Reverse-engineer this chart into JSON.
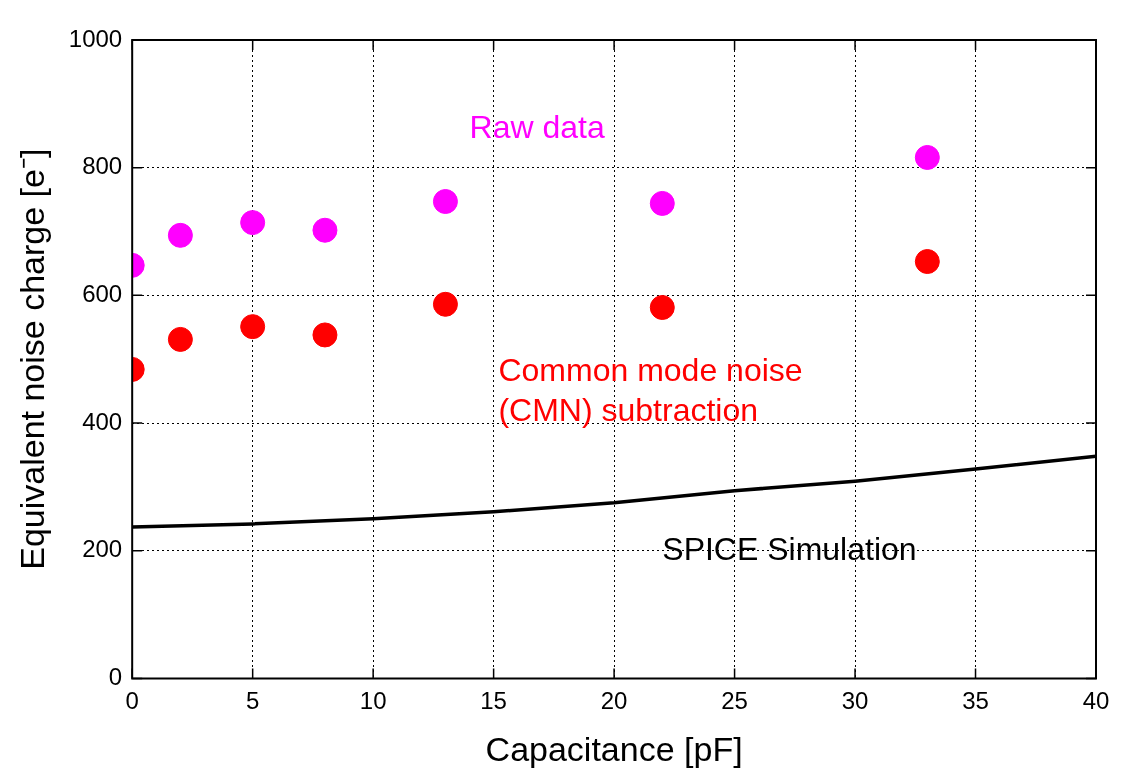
{
  "chart_data": {
    "type": "scatter",
    "xlabel": "Capacitance [pF]",
    "ylabel": "Equivalent noise charge [e⁻]",
    "xlim": [
      0,
      40
    ],
    "xticks": [
      0,
      5,
      10,
      15,
      20,
      25,
      30,
      35,
      40
    ],
    "ylim": [
      0,
      1000
    ],
    "yticks": [
      0,
      200,
      400,
      600,
      800,
      1000
    ],
    "grid": true,
    "legend": false,
    "series": [
      {
        "name": "Raw data",
        "marker": "circle",
        "color": "#ff00ff",
        "x": [
          0,
          2,
          5,
          8,
          13,
          22,
          33
        ],
        "values": [
          647,
          694,
          714,
          702,
          747,
          744,
          816
        ]
      },
      {
        "name": "Common mode noise (CMN) subtraction",
        "marker": "circle",
        "color": "#ff0000",
        "x": [
          0,
          2,
          5,
          8,
          13,
          22,
          33
        ],
        "values": [
          484,
          531,
          551,
          538,
          586,
          581,
          653
        ]
      },
      {
        "name": "SPICE Simulation",
        "type": "line",
        "color": "#000000",
        "x": [
          0,
          5,
          10,
          15,
          20,
          25,
          30,
          35,
          40
        ],
        "values": [
          237,
          242,
          250,
          261,
          275,
          294,
          309,
          328,
          348
        ]
      }
    ]
  }
}
